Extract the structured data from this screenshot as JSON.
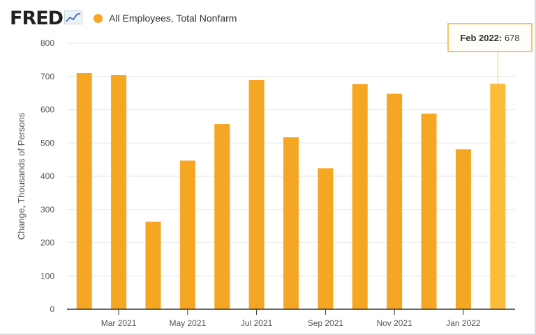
{
  "header": {
    "logo_text": "FRED",
    "series_name": "All Employees, Total Nonfarm"
  },
  "tooltip": {
    "label": "Feb 2022:",
    "value": "678"
  },
  "colors": {
    "bar": "#f5a623",
    "bar_highlight": "#fbbc3c"
  },
  "chart_data": {
    "type": "bar",
    "title": "",
    "xlabel": "",
    "ylabel": "Change, Thousands of Persons",
    "ylim": [
      0,
      800
    ],
    "yticks": [
      0,
      100,
      200,
      300,
      400,
      500,
      600,
      700,
      800
    ],
    "grid": true,
    "categories": [
      "Feb 2021",
      "Mar 2021",
      "Apr 2021",
      "May 2021",
      "Jun 2021",
      "Jul 2021",
      "Aug 2021",
      "Sep 2021",
      "Oct 2021",
      "Nov 2021",
      "Dec 2021",
      "Jan 2022",
      "Feb 2022"
    ],
    "x_tick_labels": [
      "Mar 2021",
      "May 2021",
      "Jul 2021",
      "Sep 2021",
      "Nov 2021",
      "Jan 2022"
    ],
    "x_tick_categories": [
      "Mar 2021",
      "May 2021",
      "Jul 2021",
      "Sep 2021",
      "Nov 2021",
      "Jan 2022"
    ],
    "series": [
      {
        "name": "All Employees, Total Nonfarm",
        "values": [
          710,
          704,
          263,
          447,
          557,
          689,
          517,
          424,
          677,
          648,
          588,
          481,
          678
        ]
      }
    ],
    "highlighted_category": "Feb 2022"
  }
}
